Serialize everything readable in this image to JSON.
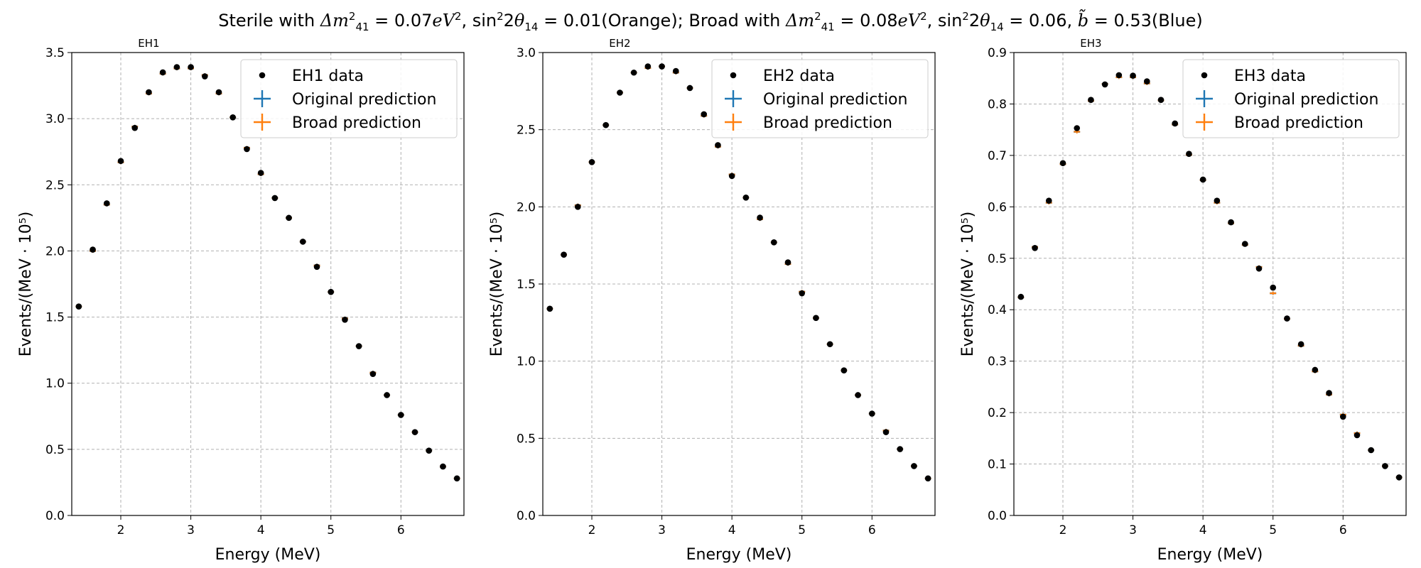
{
  "figure": {
    "suptitle_parts": [
      {
        "t": "Sterile with "
      },
      {
        "t": "Δm",
        "i": true
      },
      {
        "t": "2",
        "sup": true
      },
      {
        "t": "41",
        "sub": true
      },
      {
        "t": " = 0.07"
      },
      {
        "t": "eV",
        "i": true
      },
      {
        "t": "2",
        "sup": true
      },
      {
        "t": ", sin"
      },
      {
        "t": "2",
        "sup": true
      },
      {
        "t": "2"
      },
      {
        "t": "θ",
        "i": true
      },
      {
        "t": "14",
        "sub": true
      },
      {
        "t": " = 0.01(Orange); Broad with "
      },
      {
        "t": "Δm",
        "i": true
      },
      {
        "t": "2",
        "sup": true
      },
      {
        "t": "41",
        "sub": true
      },
      {
        "t": " = 0.08"
      },
      {
        "t": "eV",
        "i": true
      },
      {
        "t": "2",
        "sup": true
      },
      {
        "t": ", sin"
      },
      {
        "t": "2",
        "sup": true
      },
      {
        "t": "2"
      },
      {
        "t": "θ",
        "i": true
      },
      {
        "t": "14",
        "sub": true
      },
      {
        "t": " = 0.06, "
      },
      {
        "t": "b̃",
        "i": true
      },
      {
        "t": " = 0.53(Blue)"
      }
    ]
  },
  "colors": {
    "data": "#000000",
    "original": "#1f77b4",
    "broad": "#ff7f0e",
    "grid": "#b0b0b0"
  },
  "chart_data": [
    {
      "type": "scatter",
      "title": "EH1",
      "xlabel": "Energy (MeV)",
      "ylabel": "Events/(MeV · 10⁵)",
      "xlim": [
        1.3,
        6.9
      ],
      "ylim": [
        0,
        3.5
      ],
      "xticks": [
        2,
        3,
        4,
        5,
        6
      ],
      "yticks": [
        "0.0",
        "0.5",
        "1.0",
        "1.5",
        "2.0",
        "2.5",
        "3.0",
        "3.5"
      ],
      "grid": true,
      "legend_position": "upper right",
      "legend": [
        "EH1 data",
        "Original prediction",
        "Broad prediction"
      ],
      "x": [
        1.4,
        1.6,
        1.8,
        2.0,
        2.2,
        2.4,
        2.6,
        2.8,
        3.0,
        3.2,
        3.4,
        3.6,
        3.8,
        4.0,
        4.2,
        4.4,
        4.6,
        4.8,
        5.0,
        5.2,
        5.4,
        5.6,
        5.8,
        6.0,
        6.2,
        6.4,
        6.6,
        6.8
      ],
      "series": [
        {
          "name": "EH1 data",
          "values": [
            1.58,
            2.01,
            2.36,
            2.68,
            2.93,
            3.2,
            3.35,
            3.39,
            3.39,
            3.32,
            3.2,
            3.01,
            2.77,
            2.59,
            2.4,
            2.25,
            2.07,
            1.88,
            1.69,
            1.48,
            1.28,
            1.07,
            0.91,
            0.76,
            0.63,
            0.49,
            0.37,
            0.28
          ]
        },
        {
          "name": "Original prediction",
          "values": [
            1.58,
            2.0,
            2.35,
            2.67,
            2.94,
            3.19,
            3.34,
            3.38,
            3.38,
            3.33,
            3.19,
            3.01,
            2.78,
            2.58,
            2.4,
            2.25,
            2.07,
            1.89,
            1.69,
            1.49,
            1.28,
            1.08,
            0.91,
            0.76,
            0.63,
            0.49,
            0.37,
            0.28
          ]
        },
        {
          "name": "Broad prediction",
          "values": [
            1.58,
            2.0,
            2.35,
            2.67,
            2.94,
            3.19,
            3.34,
            3.38,
            3.38,
            3.33,
            3.19,
            3.01,
            2.78,
            2.58,
            2.4,
            2.25,
            2.07,
            1.89,
            1.69,
            1.49,
            1.28,
            1.08,
            0.91,
            0.76,
            0.63,
            0.49,
            0.37,
            0.28
          ]
        }
      ]
    },
    {
      "type": "scatter",
      "title": "EH2",
      "xlabel": "Energy (MeV)",
      "ylabel": "Events/(MeV · 10⁵)",
      "xlim": [
        1.3,
        6.9
      ],
      "ylim": [
        0,
        3.0
      ],
      "xticks": [
        2,
        3,
        4,
        5,
        6
      ],
      "yticks": [
        "0.0",
        "0.5",
        "1.0",
        "1.5",
        "2.0",
        "2.5",
        "3.0"
      ],
      "grid": true,
      "legend_position": "upper right",
      "legend": [
        "EH2 data",
        "Original prediction",
        "Broad prediction"
      ],
      "x": [
        1.4,
        1.6,
        1.8,
        2.0,
        2.2,
        2.4,
        2.6,
        2.8,
        3.0,
        3.2,
        3.4,
        3.6,
        3.8,
        4.0,
        4.2,
        4.4,
        4.6,
        4.8,
        5.0,
        5.2,
        5.4,
        5.6,
        5.8,
        6.0,
        6.2,
        6.4,
        6.6,
        6.8
      ],
      "series": [
        {
          "name": "EH2 data",
          "values": [
            1.34,
            1.69,
            2.0,
            2.29,
            2.53,
            2.74,
            2.87,
            2.91,
            2.91,
            2.88,
            2.77,
            2.6,
            2.4,
            2.2,
            2.06,
            1.93,
            1.77,
            1.64,
            1.44,
            1.28,
            1.11,
            0.94,
            0.78,
            0.66,
            0.54,
            0.43,
            0.32,
            0.24
          ]
        },
        {
          "name": "Original prediction",
          "values": [
            1.34,
            1.69,
            2.01,
            2.29,
            2.53,
            2.74,
            2.87,
            2.9,
            2.91,
            2.87,
            2.77,
            2.59,
            2.39,
            2.21,
            2.06,
            1.92,
            1.77,
            1.63,
            1.45,
            1.28,
            1.11,
            0.94,
            0.78,
            0.66,
            0.55,
            0.43,
            0.32,
            0.24
          ]
        },
        {
          "name": "Broad prediction",
          "values": [
            1.34,
            1.69,
            2.01,
            2.29,
            2.53,
            2.74,
            2.87,
            2.9,
            2.91,
            2.87,
            2.77,
            2.59,
            2.39,
            2.21,
            2.06,
            1.92,
            1.77,
            1.63,
            1.45,
            1.28,
            1.11,
            0.94,
            0.78,
            0.66,
            0.55,
            0.43,
            0.32,
            0.24
          ]
        }
      ]
    },
    {
      "type": "scatter",
      "title": "EH3",
      "xlabel": "Energy (MeV)",
      "ylabel": "Events/(MeV · 10⁵)",
      "xlim": [
        1.3,
        6.9
      ],
      "ylim": [
        0,
        0.9
      ],
      "xticks": [
        2,
        3,
        4,
        5,
        6
      ],
      "yticks": [
        "0.0",
        "0.1",
        "0.2",
        "0.3",
        "0.4",
        "0.5",
        "0.6",
        "0.7",
        "0.8",
        "0.9"
      ],
      "grid": true,
      "legend_position": "upper right",
      "legend": [
        "EH3 data",
        "Original prediction",
        "Broad prediction"
      ],
      "x": [
        1.4,
        1.6,
        1.8,
        2.0,
        2.2,
        2.4,
        2.6,
        2.8,
        3.0,
        3.2,
        3.4,
        3.6,
        3.8,
        4.0,
        4.2,
        4.4,
        4.6,
        4.8,
        5.0,
        5.2,
        5.4,
        5.6,
        5.8,
        6.0,
        6.2,
        6.4,
        6.6,
        6.8
      ],
      "series": [
        {
          "name": "EH3 data",
          "values": [
            0.425,
            0.52,
            0.612,
            0.685,
            0.753,
            0.808,
            0.838,
            0.856,
            0.855,
            0.844,
            0.808,
            0.762,
            0.703,
            0.653,
            0.612,
            0.57,
            0.528,
            0.48,
            0.443,
            0.383,
            0.333,
            0.283,
            0.238,
            0.192,
            0.156,
            0.127,
            0.096,
            0.074
          ]
        },
        {
          "name": "Original prediction",
          "values": [
            0.424,
            0.522,
            0.608,
            0.683,
            0.746,
            0.806,
            0.839,
            0.852,
            0.852,
            0.84,
            0.807,
            0.76,
            0.701,
            0.652,
            0.608,
            0.568,
            0.526,
            0.483,
            0.432,
            0.382,
            0.33,
            0.28,
            0.235,
            0.196,
            0.16,
            0.127,
            0.096,
            0.074
          ]
        },
        {
          "name": "Broad prediction",
          "values": [
            0.424,
            0.522,
            0.608,
            0.683,
            0.746,
            0.806,
            0.839,
            0.852,
            0.852,
            0.84,
            0.807,
            0.76,
            0.701,
            0.652,
            0.608,
            0.568,
            0.526,
            0.483,
            0.432,
            0.382,
            0.33,
            0.28,
            0.235,
            0.196,
            0.16,
            0.127,
            0.096,
            0.074
          ]
        }
      ]
    }
  ]
}
